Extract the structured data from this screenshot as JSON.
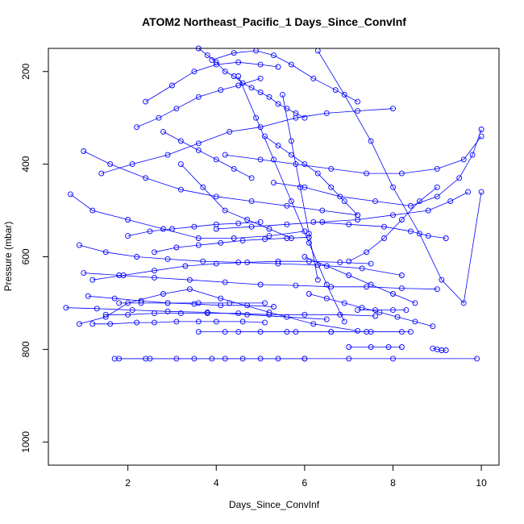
{
  "chart_data": {
    "type": "scatter",
    "title": "ATOM2 Northeast_Pacific_1 Days_Since_ConvInf",
    "xlabel": "Days_Since_ConvInf",
    "ylabel": "Pressure (mbar)",
    "xlim": [
      0.2,
      10.4
    ],
    "ylim": [
      1050,
      150
    ],
    "y_reversed": true,
    "grid": false,
    "legend": "none",
    "color": "#0000ff",
    "x_ticks": [
      "2",
      "4",
      "6",
      "8",
      "10"
    ],
    "y_ticks": [
      "200",
      "400",
      "600",
      "800",
      "1000"
    ],
    "series": [
      {
        "x": [
          1.7,
          2.5,
          3.5,
          4.2,
          5.0,
          6.0,
          7.0,
          8.0,
          9.9
        ],
        "y": [
          820,
          820,
          820,
          820,
          820,
          820,
          820,
          820,
          820
        ]
      },
      {
        "x": [
          1.8,
          2.4,
          3.1,
          3.9,
          4.6,
          5.4,
          6.0
        ],
        "y": [
          820,
          820,
          820,
          820,
          820,
          820,
          820
        ]
      },
      {
        "x": [
          3.6,
          4.2,
          5.0,
          5.8,
          6.6,
          7.4,
          8.2
        ],
        "y": [
          762,
          762,
          762,
          762,
          762,
          762,
          762
        ]
      },
      {
        "x": [
          4.5,
          5.6,
          6.6,
          7.5,
          8.4
        ],
        "y": [
          762,
          762,
          762,
          762,
          762
        ]
      },
      {
        "x": [
          1.2,
          1.6,
          2.2,
          2.6,
          3.1,
          3.6,
          4.0,
          4.6,
          5.1
        ],
        "y": [
          745,
          745,
          742,
          742,
          740,
          740,
          740,
          740,
          742
        ]
      },
      {
        "x": [
          1.5,
          2.0,
          2.6,
          3.2,
          3.8,
          4.5,
          5.2,
          6.0,
          6.8,
          7.6
        ],
        "y": [
          725,
          725,
          722,
          722,
          722,
          722,
          725,
          725,
          725,
          728
        ]
      },
      {
        "x": [
          1.8,
          2.3,
          2.9,
          3.6,
          4.3,
          5.1
        ],
        "y": [
          700,
          700,
          700,
          700,
          700,
          700
        ]
      },
      {
        "x": [
          7.2,
          7.6,
          8.0,
          8.3
        ],
        "y": [
          715,
          715,
          715,
          715
        ]
      },
      {
        "x": [
          7.0,
          7.5,
          7.9,
          8.2
        ],
        "y": [
          795,
          795,
          795,
          795
        ]
      },
      {
        "x": [
          8.9,
          9.0,
          9.1,
          9.2
        ],
        "y": [
          798,
          800,
          802,
          802
        ]
      },
      {
        "x": [
          0.9,
          1.5,
          2.0,
          2.8,
          3.4,
          4.1,
          5.2,
          6.2,
          7.2
        ],
        "y": [
          745,
          730,
          700,
          680,
          670,
          690,
          720,
          745,
          760
        ]
      },
      {
        "x": [
          3.6,
          3.8,
          4.0,
          4.2,
          4.4,
          4.6,
          4.8,
          5.0,
          5.2,
          5.4,
          5.6,
          5.8,
          6.0
        ],
        "y": [
          150,
          165,
          180,
          200,
          210,
          225,
          235,
          245,
          255,
          270,
          280,
          290,
          300
        ]
      },
      {
        "x": [
          3.9,
          4.4,
          4.9,
          5.3,
          5.7,
          6.2,
          6.7,
          7.2
        ],
        "y": [
          175,
          160,
          155,
          165,
          185,
          215,
          240,
          265
        ]
      },
      {
        "x": [
          2.4,
          3.0,
          3.5,
          4.0,
          4.5,
          5.0,
          5.4
        ],
        "y": [
          265,
          230,
          200,
          185,
          180,
          185,
          190
        ]
      },
      {
        "x": [
          2.2,
          2.7,
          3.1,
          3.6,
          4.1,
          4.5,
          5.0
        ],
        "y": [
          320,
          300,
          280,
          255,
          240,
          230,
          215
        ]
      },
      {
        "x": [
          1.4,
          2.1,
          2.9,
          3.6,
          4.3,
          5.0,
          5.8,
          6.5,
          7.2,
          8.0
        ],
        "y": [
          420,
          400,
          380,
          355,
          330,
          320,
          300,
          290,
          285,
          280
        ]
      },
      {
        "x": [
          1.0,
          1.6,
          2.4,
          3.2,
          4.0,
          4.8,
          5.6,
          6.4,
          7.2
        ],
        "y": [
          372,
          400,
          430,
          455,
          470,
          480,
          490,
          500,
          510
        ]
      },
      {
        "x": [
          0.7,
          1.2,
          2.0,
          2.8,
          3.6,
          4.4,
          5.2,
          6.0
        ],
        "y": [
          465,
          500,
          520,
          540,
          560,
          560,
          555,
          545
        ]
      },
      {
        "x": [
          0.9,
          1.5,
          2.2,
          2.9,
          3.7,
          4.5,
          5.4,
          6.3,
          7.3,
          8.2
        ],
        "y": [
          575,
          590,
          600,
          605,
          610,
          612,
          615,
          618,
          625,
          640
        ]
      },
      {
        "x": [
          1.0,
          1.8,
          2.6,
          3.4,
          4.2,
          5.0,
          5.8,
          6.6,
          7.4,
          8.2,
          9.0
        ],
        "y": [
          635,
          640,
          645,
          650,
          655,
          660,
          662,
          665,
          665,
          668,
          670
        ]
      },
      {
        "x": [
          4.2,
          5.0,
          5.8,
          6.6,
          7.4,
          8.2,
          9.0,
          9.6,
          10.0
        ],
        "y": [
          380,
          390,
          400,
          410,
          420,
          420,
          410,
          390,
          340
        ]
      },
      {
        "x": [
          5.3,
          6.0,
          6.8,
          7.6,
          8.4,
          9.0,
          9.5,
          9.8,
          10.0
        ],
        "y": [
          440,
          450,
          470,
          480,
          490,
          470,
          430,
          380,
          325
        ]
      },
      {
        "x": [
          4.0,
          4.8,
          5.6,
          6.4,
          7.2,
          8.0,
          8.8,
          9.3,
          9.7
        ],
        "y": [
          540,
          535,
          530,
          525,
          520,
          510,
          500,
          480,
          460
        ]
      },
      {
        "x": [
          9.2,
          8.8,
          8.4,
          7.8,
          7.0,
          6.2
        ],
        "y": [
          560,
          555,
          545,
          535,
          530,
          525
        ]
      },
      {
        "x": [
          6.3,
          6.9,
          7.5,
          8.0,
          8.6,
          9.1,
          9.6,
          10.0
        ],
        "y": [
          155,
          250,
          350,
          450,
          550,
          650,
          700,
          460
        ]
      },
      {
        "x": [
          5.5,
          5.7,
          5.9,
          6.1,
          6.3
        ],
        "y": [
          250,
          350,
          450,
          550,
          650
        ]
      },
      {
        "x": [
          4.5,
          4.9,
          5.3,
          5.7,
          6.1,
          6.5,
          6.9
        ],
        "y": [
          210,
          300,
          390,
          480,
          570,
          660,
          740
        ]
      },
      {
        "x": [
          3.2,
          3.7,
          4.2,
          4.7,
          5.2,
          5.7
        ],
        "y": [
          400,
          450,
          500,
          520,
          540,
          560
        ]
      },
      {
        "x": [
          1.1,
          1.7,
          2.3,
          2.9,
          3.5,
          4.1,
          4.7,
          5.3
        ],
        "y": [
          685,
          690,
          695,
          700,
          702,
          705,
          705,
          708
        ]
      },
      {
        "x": [
          0.6,
          1.3,
          2.1,
          2.9,
          3.8,
          4.7,
          5.6,
          6.5
        ],
        "y": [
          710,
          712,
          715,
          718,
          720,
          725,
          730,
          735
        ]
      },
      {
        "x": [
          6.0,
          6.5,
          7.0,
          7.5,
          8.0,
          8.5
        ],
        "y": [
          600,
          620,
          640,
          660,
          680,
          700
        ]
      },
      {
        "x": [
          7.0,
          7.4,
          7.8,
          8.2,
          8.6,
          9.0
        ],
        "y": [
          610,
          590,
          560,
          520,
          480,
          450
        ]
      },
      {
        "x": [
          2.6,
          3.1,
          3.6,
          4.1,
          4.6,
          5.1,
          5.6,
          6.1
        ],
        "y": [
          590,
          580,
          575,
          570,
          565,
          562,
          560,
          558
        ]
      },
      {
        "x": [
          1.2,
          1.9,
          2.6,
          3.3,
          4.0,
          4.7,
          5.4,
          6.1,
          6.8,
          7.5
        ],
        "y": [
          650,
          640,
          630,
          620,
          615,
          612,
          610,
          610,
          612,
          615
        ]
      },
      {
        "x": [
          5.1,
          5.4,
          5.7,
          6.0,
          6.3,
          6.6,
          6.9,
          7.2
        ],
        "y": [
          340,
          360,
          380,
          400,
          420,
          450,
          480,
          510
        ]
      },
      {
        "x": [
          2.8,
          3.2,
          3.6,
          4.0,
          4.4,
          4.8
        ],
        "y": [
          330,
          350,
          370,
          390,
          410,
          430
        ]
      },
      {
        "x": [
          2.0,
          2.5,
          3.0,
          3.5,
          4.0,
          4.5,
          5.0
        ],
        "y": [
          555,
          545,
          540,
          535,
          530,
          528,
          525
        ]
      },
      {
        "x": [
          6.1,
          6.5,
          6.9,
          7.3,
          7.7,
          8.1,
          8.5,
          8.9
        ],
        "y": [
          680,
          690,
          700,
          710,
          720,
          730,
          740,
          750
        ]
      }
    ]
  }
}
